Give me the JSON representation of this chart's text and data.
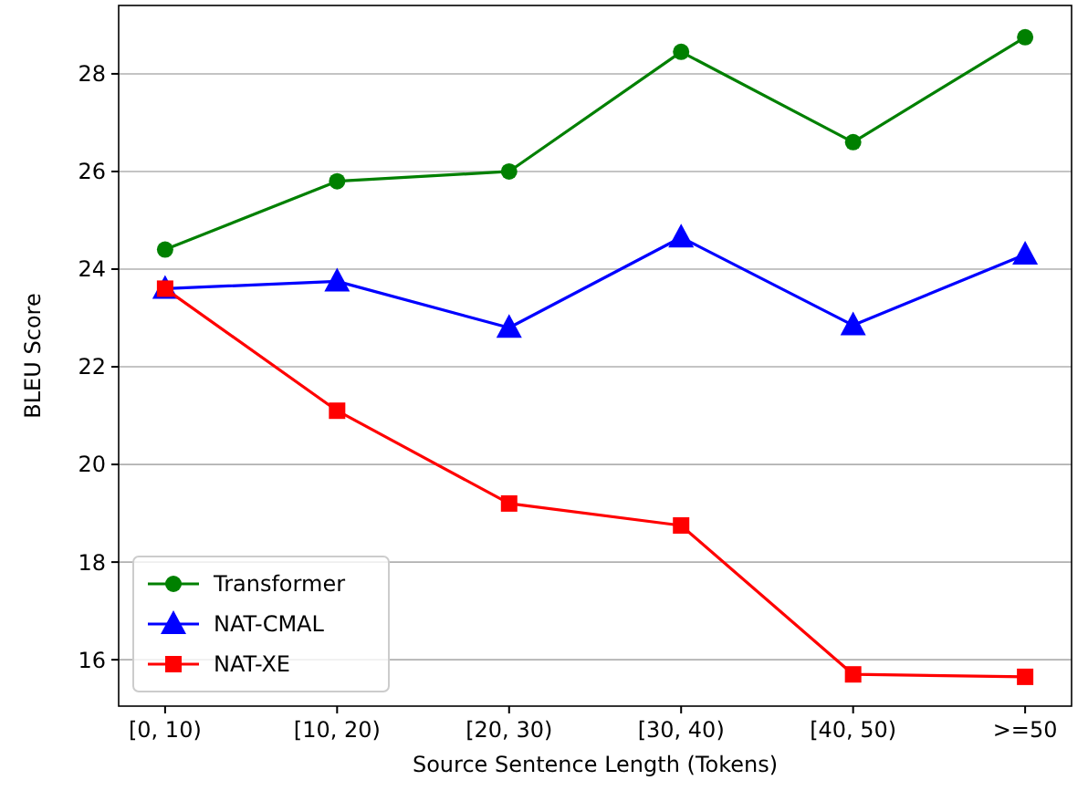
{
  "chart_data": {
    "type": "line",
    "xlabel": "Source Sentence Length (Tokens)",
    "ylabel": "BLEU Score",
    "categories": [
      "[0, 10)",
      "[10, 20)",
      "[20, 30)",
      "[30, 40)",
      "[40, 50)",
      ">=50"
    ],
    "series": [
      {
        "name": "Transformer",
        "color": "#008000",
        "marker": "circle",
        "values": [
          24.4,
          25.8,
          26.0,
          28.45,
          26.6,
          28.75
        ]
      },
      {
        "name": "NAT-CMAL",
        "color": "#0000ff",
        "marker": "triangle",
        "values": [
          23.6,
          23.75,
          22.8,
          24.65,
          22.85,
          24.3
        ]
      },
      {
        "name": "NAT-XE",
        "color": "#ff0000",
        "marker": "square",
        "values": [
          23.6,
          21.1,
          19.2,
          18.75,
          15.7,
          15.65
        ]
      }
    ],
    "ylim": [
      15.05,
      29.4
    ],
    "yticks": [
      16,
      18,
      20,
      22,
      24,
      26,
      28
    ],
    "grid": "y",
    "legend": "bottom left",
    "line_style": "solid"
  }
}
